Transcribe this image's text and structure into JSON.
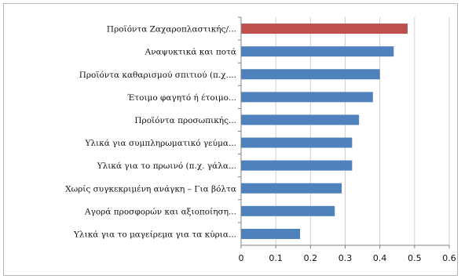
{
  "chart_data": {
    "type": "bar",
    "orientation": "horizontal",
    "categories": [
      "Προϊόντα Ζαχαροπλαστικής/...",
      "Αναψυκτικά και ποτά",
      "Προϊόντα καθαρισμού σπιτιού (π.χ....",
      "Έτοιμο φαγητό ή έτοιμο...",
      "Προϊόντα προσωπικής...",
      "Υλικά για συμπληρωματικό γεύμα...",
      "Υλικά για το πρωινό (π.χ. γάλα...",
      "Χωρίς συγκεκριμένη ανάγκη – Για βόλτα",
      "Αγορά προσφορών και αξιοποίηση...",
      "Υλικά για το μαγείρεμα για τα κύρια..."
    ],
    "values": [
      0.48,
      0.44,
      0.4,
      0.38,
      0.34,
      0.32,
      0.32,
      0.29,
      0.27,
      0.17
    ],
    "highlight_index": 0,
    "colors": {
      "bar": "#4f81bd",
      "highlight": "#c0504d",
      "grid": "#d0d0d0",
      "axis": "#808080"
    },
    "xlim": [
      0,
      0.6
    ],
    "xticks": [
      "0",
      "0.1",
      "0.2",
      "0.3",
      "0.4",
      "0.5",
      "0.6"
    ],
    "grid": true,
    "legend": "none",
    "title": "",
    "xlabel": "",
    "ylabel": ""
  }
}
